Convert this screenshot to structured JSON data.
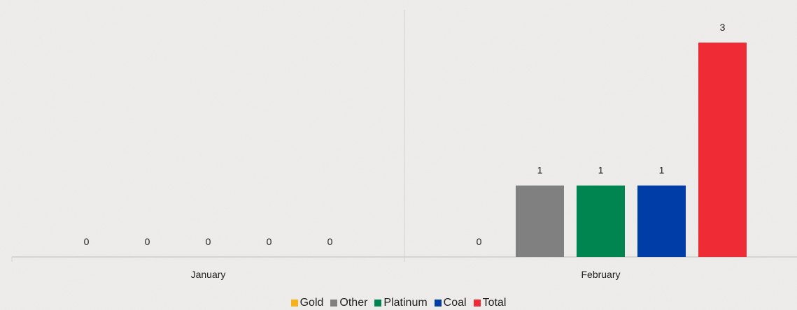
{
  "chart_data": {
    "type": "bar",
    "categories": [
      "January",
      "February"
    ],
    "series": [
      {
        "name": "Gold",
        "color": "#f5b21a",
        "values": [
          0,
          0
        ]
      },
      {
        "name": "Other",
        "color": "#808080",
        "values": [
          0,
          1
        ]
      },
      {
        "name": "Platinum",
        "color": "#008550",
        "values": [
          0,
          1
        ]
      },
      {
        "name": "Coal",
        "color": "#003da6",
        "values": [
          0,
          1
        ]
      },
      {
        "name": "Total",
        "color": "#ef2b36",
        "values": [
          0,
          3
        ]
      }
    ],
    "data_labels": [
      [
        "0",
        "0",
        "0",
        "0",
        "0"
      ],
      [
        "0",
        "1",
        "1",
        "1",
        "3"
      ]
    ],
    "ylim": [
      0,
      3
    ],
    "grid": false,
    "legend_position": "bottom",
    "title": "",
    "xlabel": "",
    "ylabel": ""
  }
}
